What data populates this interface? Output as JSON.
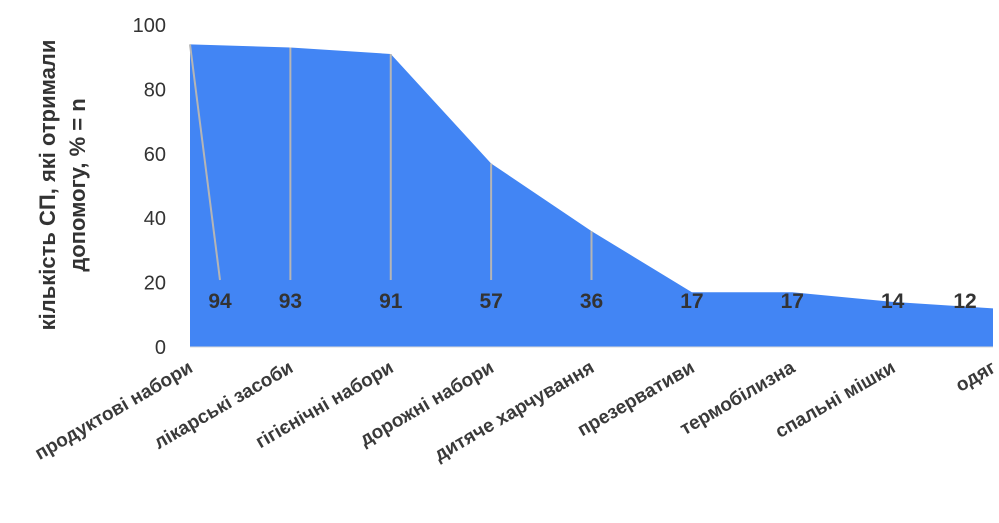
{
  "chart_data": {
    "type": "area",
    "categories": [
      "продуктові набори",
      "лікарські засоби",
      "гігієнічні набори",
      "дорожні набори",
      "дитяче харчування",
      "презервативи",
      "термобілизна",
      "спальні мішки",
      "одяг"
    ],
    "values": [
      94,
      93,
      91,
      57,
      36,
      17,
      17,
      14,
      12
    ],
    "data_labels": [
      "94",
      "93",
      "91",
      "57",
      "36",
      "17",
      "17",
      "14",
      "12"
    ],
    "ylabel_lines": [
      "кількість СП, які отримали",
      "допомогу, % = n"
    ],
    "ylim": [
      0,
      100
    ],
    "yticks": [
      "0",
      "20",
      "40",
      "60",
      "80",
      "100"
    ],
    "grid": false,
    "legend": "none",
    "colors": {
      "area": "#4285f4",
      "leader": "#b5b5b5",
      "axis": "#d9d9d9"
    }
  }
}
